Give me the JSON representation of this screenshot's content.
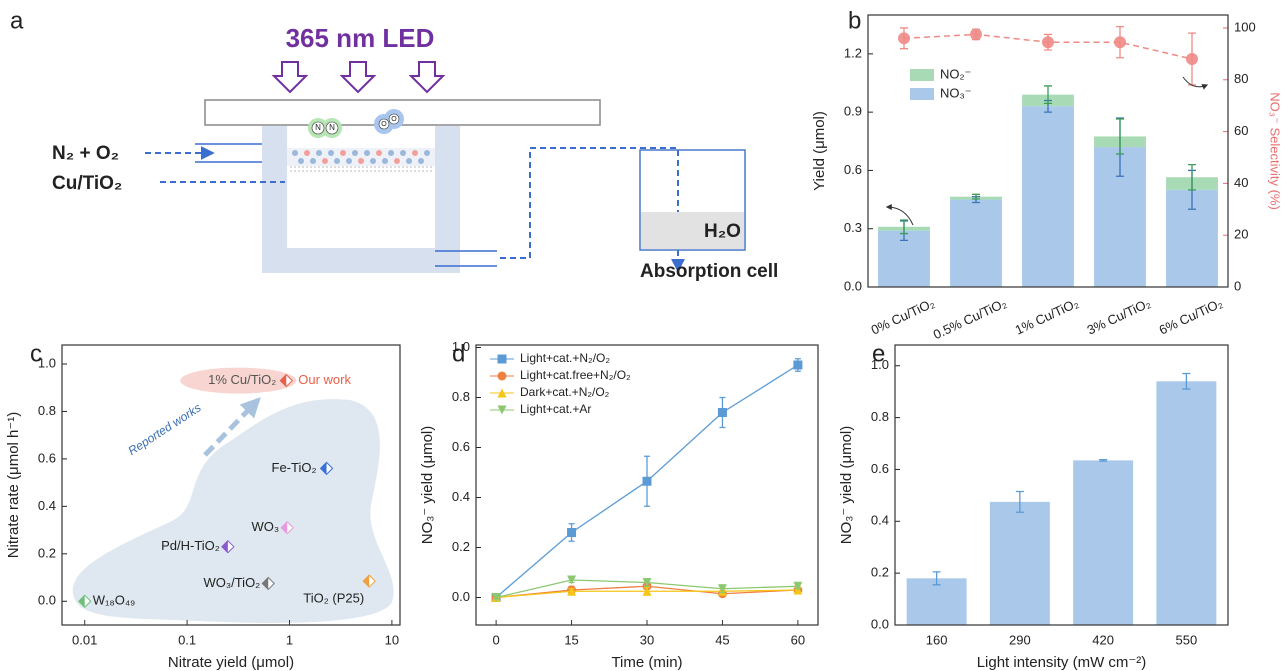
{
  "diagram": {
    "panel_label": "a",
    "light_source": "365 nm LED",
    "gas": "N₂ + O₂",
    "catalyst": "Cu/TiO₂",
    "n_atom": "N",
    "o_atom": "O",
    "water": "H₂O",
    "cell": "Absorption cell"
  },
  "chart_data": [
    {
      "type": "bar",
      "panel_label": "b",
      "stacked": true,
      "categories": [
        "0% Cu/TiO₂",
        "0.5% Cu/TiO₂",
        "1% Cu/TiO₂",
        "3% Cu/TiO₂",
        "6% Cu/TiO₂"
      ],
      "series": [
        {
          "name": "NO₃⁻",
          "color": "#a9c8ea",
          "values": [
            0.29,
            0.45,
            0.93,
            0.72,
            0.5
          ],
          "errors": [
            0.05,
            0.015,
            0.03,
            0.15,
            0.1
          ],
          "error_color": "#3a73b8"
        },
        {
          "name": "NO₂⁻",
          "color": "#a8dab5",
          "values": [
            0.02,
            0.015,
            0.06,
            0.055,
            0.065
          ],
          "errors": [
            0.035,
            0.012,
            0.045,
            0.09,
            0.065
          ],
          "error_color": "#3f9b57"
        },
        {
          "type": "line",
          "axis": "y2",
          "color": "#f08a86",
          "values": [
            96,
            97.5,
            94.5,
            94.5,
            88
          ],
          "errors": [
            4,
            2,
            3,
            6,
            10
          ]
        }
      ],
      "ylim": [
        0,
        1.4
      ],
      "yticks": [
        {
          "value": 0,
          "label": "0.0"
        },
        0.3,
        0.6,
        0.9,
        1.2
      ],
      "y2lim": [
        0,
        105
      ],
      "y2ticks": [
        0,
        20,
        40,
        60,
        80,
        100
      ],
      "ylabel": "Yield (μmol)",
      "y2label": "NO₃⁻ Selectivity (%)",
      "legend": "upper left"
    },
    {
      "type": "scatter",
      "panel_label": "c",
      "xlabel": "Nitrate yield (μmol)",
      "ylabel": "Nitrate rate (μmol h⁻¹)",
      "xlog": true,
      "xlim": [
        0.006,
        12
      ],
      "xticks": [
        0.01,
        0.1,
        1,
        10
      ],
      "ylim": [
        -0.1,
        1.08
      ],
      "yticks": [
        {
          "value": 0,
          "label": "0.0"
        },
        0.2,
        0.4,
        0.6,
        0.8,
        {
          "value": 1,
          "label": "1.0"
        }
      ],
      "labels": [
        "W₁₈O₄₉",
        "WO₃/TiO₂",
        "TiO₂ (P25)",
        "Pd/H-TiO₂",
        "WO₃",
        "Fe-TiO₂",
        "1% Cu/TiO₂"
      ],
      "x": [
        0.01,
        0.62,
        6,
        0.25,
        0.95,
        2.3,
        0.93
      ],
      "y": [
        0,
        0.075,
        0.085,
        0.23,
        0.31,
        0.56,
        0.93
      ],
      "colors": [
        "#6cc07a",
        "#777777",
        "#f0a040",
        "#8a5ad0",
        "#e89ae0",
        "#3a6fd8",
        "#e8604a"
      ],
      "annotations": [
        "Our work",
        "Reported works"
      ]
    },
    {
      "type": "line",
      "panel_label": "d",
      "xlabel": "Time (min)",
      "ylabel": "NO₃⁻ yield (μmol)",
      "x": [
        0,
        15,
        30,
        45,
        60
      ],
      "xlim": [
        -4,
        64
      ],
      "xticks": [
        0,
        15,
        30,
        45,
        60
      ],
      "ylim": [
        -0.11,
        1.01
      ],
      "yticks": [
        {
          "value": 0,
          "label": "0.0"
        },
        0.2,
        0.4,
        0.6,
        0.8,
        {
          "value": 1,
          "label": "1.0"
        }
      ],
      "legend": "upper left",
      "series": [
        {
          "name": "Light+cat.+N₂/O₂",
          "color": "#5b9bd5",
          "marker": "square",
          "values": [
            0,
            0.26,
            0.465,
            0.74,
            0.93
          ],
          "errors": [
            0.01,
            0.035,
            0.1,
            0.06,
            0.025
          ]
        },
        {
          "name": "Light+cat.free+N₂/O₂",
          "color": "#f08040",
          "marker": "circle",
          "values": [
            0,
            0.03,
            0.045,
            0.015,
            0.03
          ],
          "errors": [
            0.005,
            0.015,
            0.03,
            0.01,
            0.01
          ]
        },
        {
          "name": "Dark+cat.+N₂/O₂",
          "color": "#f5c518",
          "marker": "triangle-up",
          "values": [
            0,
            0.025,
            0.025,
            0.025,
            0.03
          ],
          "errors": [
            0.005,
            0.01,
            0.015,
            0.01,
            0.01
          ]
        },
        {
          "name": "Light+cat.+Ar",
          "color": "#8cc870",
          "marker": "triangle-down",
          "values": [
            0,
            0.07,
            0.06,
            0.035,
            0.045
          ],
          "errors": [
            0.005,
            0.01,
            0.015,
            0.015,
            0.01
          ]
        }
      ]
    },
    {
      "type": "bar",
      "panel_label": "e",
      "xlabel": "Light intensity (mW cm⁻²)",
      "ylabel": "NO₃⁻ yield (μmol)",
      "categories": [
        "160",
        "290",
        "420",
        "550"
      ],
      "values": [
        0.18,
        0.475,
        0.635,
        0.94
      ],
      "errors": [
        0.025,
        0.04,
        0.003,
        0.03
      ],
      "color": "#a9c8ea",
      "error_color": "#5b9bd5",
      "ylim": [
        0,
        1.08
      ],
      "yticks": [
        {
          "value": 0,
          "label": "0.0"
        },
        0.2,
        0.4,
        0.6,
        0.8,
        {
          "value": 1,
          "label": "1.0"
        }
      ]
    }
  ]
}
